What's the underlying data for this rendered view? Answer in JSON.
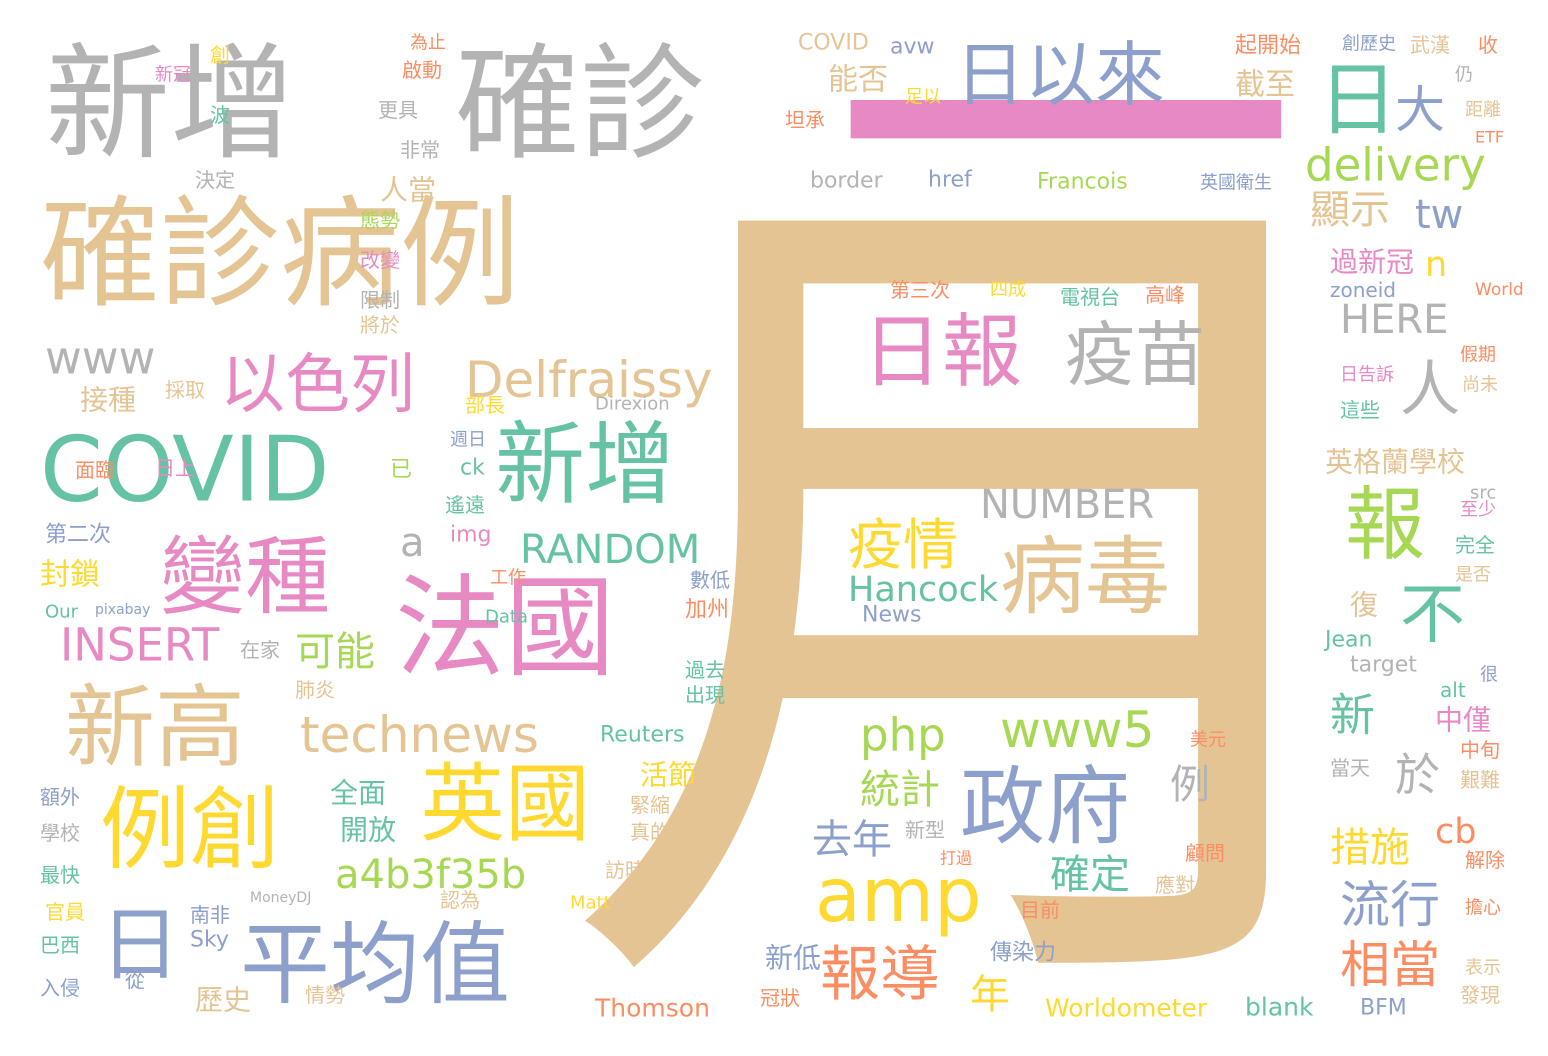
{
  "words": [
    "月",
    "一",
    "新增",
    "確診",
    "確診病例",
    "日以來",
    "日",
    "大",
    "delivery",
    "tw",
    "顯示",
    "n",
    "過新冠",
    "zoneid",
    "World",
    "HERE",
    "人",
    "日報",
    "疫苗",
    "以色列",
    "Delfraissy",
    "www",
    "COVID",
    "新增",
    "變種",
    "a",
    "NUMBER",
    "RANDOM",
    "疫情",
    "病毒",
    "報",
    "不",
    "英格蘭學校",
    "法國",
    "封鎖",
    "INSERT",
    "可能",
    "Hancock",
    "News",
    "新高",
    "technews",
    "php",
    "www5",
    "新",
    "於",
    "例",
    "例創",
    "英國",
    "政府",
    "統計",
    "去年",
    "a4b3f35b",
    "amp",
    "確定",
    "流行",
    "措施",
    "cb",
    "日",
    "平均值",
    "報導",
    "年",
    "相當",
    "Worldometer",
    "Thomson",
    "blank",
    "BFM",
    "歷史",
    "新低",
    "傳染力",
    "能否",
    "截至",
    "接種",
    "人當",
    "全面",
    "開放",
    "活節",
    "緊縮",
    "中僅",
    "中旬",
    "復",
    "第二次",
    "面臨",
    "日上",
    "學校",
    "額外",
    "最快",
    "官員",
    "巴西",
    "入侵",
    "南非",
    "Sky",
    "從",
    "情勢",
    "肺炎",
    "在家",
    "加州",
    "過去",
    "出現",
    "Reuters",
    "img",
    "ck",
    "遙遠",
    "部長",
    "Direxion",
    "週日",
    "第三次",
    "四成",
    "電視台",
    "高峰",
    "border",
    "href",
    "Francois",
    "英國衛生",
    "COVID",
    "avw",
    "起開始",
    "創歷史",
    "武漢",
    "收",
    "坦承",
    "足以",
    "為止",
    "啟動",
    "更具",
    "非常",
    "決定",
    "波",
    "新冠",
    "創",
    "態勢",
    "改變",
    "限制",
    "將於",
    "採取",
    "距離",
    "ETF",
    "仍",
    "假期",
    "尚未",
    "日告訴",
    "這些",
    "很",
    "是否",
    "完全",
    "至少",
    "src",
    "Jean",
    "target",
    "alt",
    "當天",
    "艱難",
    "解除",
    "擔心",
    "表示",
    "發現",
    "顧問",
    "應對",
    "目前",
    "Our",
    "pixabay",
    "Data",
    "工作",
    "認為",
    "Matt",
    "MoneyDJ",
    "冠狀",
    "打過",
    "新型",
    "真的",
    "訪時",
    "數低",
    "已",
    "美元"
  ]
}
